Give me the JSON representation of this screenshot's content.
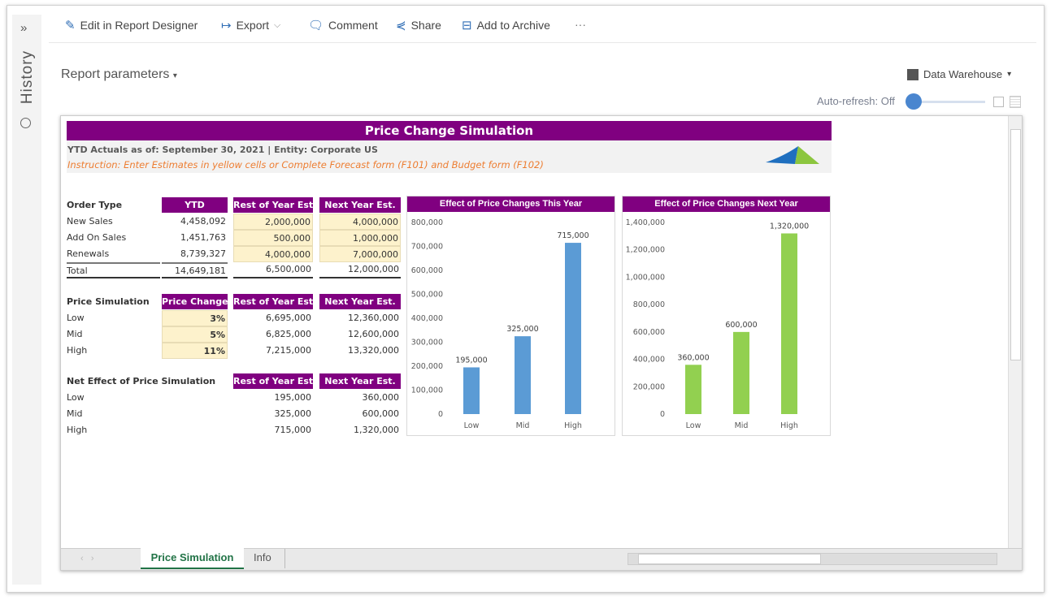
{
  "toolbar": {
    "edit": "Edit in Report Designer",
    "export": "Export",
    "comment": "Comment",
    "share": "Share",
    "archive": "Add to Archive",
    "more": "···"
  },
  "sidebar": {
    "expand": "»",
    "history": "History"
  },
  "params": {
    "label": "Report parameters",
    "source": "Data Warehouse",
    "autorefresh": "Auto-refresh: Off"
  },
  "sheet": {
    "title": "Price Change Simulation",
    "subtitle": "YTD Actuals as of: September 30, 2021 | Entity: Corporate US",
    "instruction": "Instruction: Enter Estimates in yellow cells or Complete Forecast form (F101) and Budget form (F102)",
    "order": {
      "headers": [
        "Order Type",
        "YTD",
        "Rest of Year Est.",
        "Next Year Est."
      ],
      "rows": [
        [
          "New Sales",
          "4,458,092",
          "2,000,000",
          "4,000,000"
        ],
        [
          "Add On Sales",
          "1,451,763",
          "500,000",
          "1,000,000"
        ],
        [
          "Renewals",
          "8,739,327",
          "4,000,000",
          "7,000,000"
        ],
        [
          "Total",
          "14,649,181",
          "6,500,000",
          "12,000,000"
        ]
      ]
    },
    "sim": {
      "headers": [
        "Price Simulation",
        "Price Change",
        "Rest of Year Est.",
        "Next Year Est."
      ],
      "rows": [
        [
          "Low",
          "3%",
          "6,695,000",
          "12,360,000"
        ],
        [
          "Mid",
          "5%",
          "6,825,000",
          "12,600,000"
        ],
        [
          "High",
          "11%",
          "7,215,000",
          "13,320,000"
        ]
      ]
    },
    "net": {
      "headers": [
        "Net Effect of Price Simulation",
        "Rest of Year Est.",
        "Next Year Est."
      ],
      "rows": [
        [
          "Low",
          "195,000",
          "360,000"
        ],
        [
          "Mid",
          "325,000",
          "600,000"
        ],
        [
          "High",
          "715,000",
          "1,320,000"
        ]
      ]
    }
  },
  "chart_data": [
    {
      "type": "bar",
      "title": "Effect of Price Changes This Year",
      "categories": [
        "Low",
        "Mid",
        "High"
      ],
      "values": [
        195000,
        325000,
        715000
      ],
      "labels": [
        "195,000",
        "325,000",
        "715,000"
      ],
      "ylim": [
        0,
        800000
      ],
      "yticks": [
        "0",
        "100,000",
        "200,000",
        "300,000",
        "400,000",
        "500,000",
        "600,000",
        "700,000",
        "800,000"
      ],
      "color": "#5b9bd5",
      "grid": false
    },
    {
      "type": "bar",
      "title": "Effect of Price Changes Next Year",
      "categories": [
        "Low",
        "Mid",
        "High"
      ],
      "values": [
        360000,
        600000,
        1320000
      ],
      "labels": [
        "360,000",
        "600,000",
        "1,320,000"
      ],
      "ylim": [
        0,
        1400000
      ],
      "yticks": [
        "0",
        "200,000",
        "400,000",
        "600,000",
        "800,000",
        "1,000,000",
        "1,200,000",
        "1,400,000"
      ],
      "color": "#92d050",
      "grid": false
    }
  ],
  "tabs": {
    "active": "Price Simulation",
    "other": "Info"
  },
  "colors": {
    "header": "#800080",
    "instruction": "#ed7d31",
    "input": "#fdf2cc",
    "tab_active": "#217346"
  }
}
